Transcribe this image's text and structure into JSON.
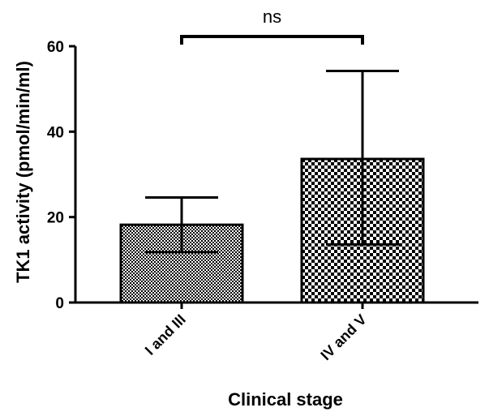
{
  "chart_data": {
    "type": "bar",
    "title": "",
    "xlabel": "Clinical stage",
    "ylabel": "TK1 activity (pmol/min/ml)",
    "categories": [
      "I and III",
      "IV and V"
    ],
    "values": [
      18.2,
      33.6
    ],
    "error_upper": [
      24.6,
      54.2
    ],
    "error_lower": [
      11.8,
      13.6
    ],
    "ylim": [
      0,
      60
    ],
    "yticks": [
      "0",
      "20",
      "40",
      "60"
    ],
    "grid": false,
    "bar_patterns": [
      "fine-checker",
      "coarse-checker"
    ],
    "significance": {
      "between": [
        "I and III",
        "IV and V"
      ],
      "label": "ns"
    },
    "colors": {
      "ink": "#000000",
      "fill": "#ffffff"
    }
  }
}
